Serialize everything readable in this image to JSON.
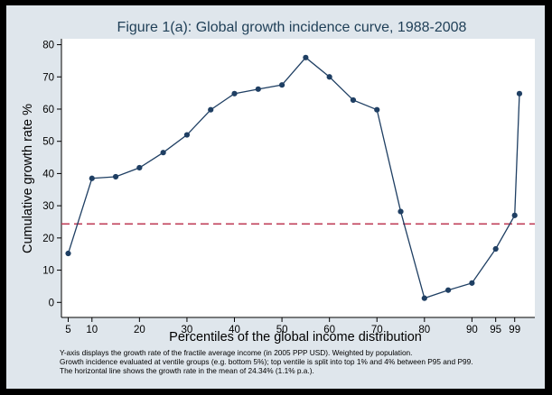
{
  "chart_data": {
    "type": "line",
    "title": "Figure 1(a): Global growth incidence curve, 1988-2008",
    "xlabel": "Percentiles of the global income distribution",
    "ylabel": "Cumulative growth rate %",
    "ylim": [
      0,
      80
    ],
    "yticks": [
      0,
      10,
      20,
      30,
      40,
      50,
      60,
      70,
      80
    ],
    "xticks": [
      5,
      10,
      20,
      30,
      40,
      50,
      60,
      70,
      80,
      90,
      95,
      99
    ],
    "x": [
      5,
      10,
      15,
      20,
      25,
      30,
      35,
      40,
      45,
      50,
      55,
      60,
      65,
      70,
      75,
      80,
      85,
      90,
      95,
      99,
      100
    ],
    "values": [
      15.2,
      38.5,
      39.0,
      41.8,
      46.5,
      52.0,
      59.8,
      64.8,
      66.2,
      67.5,
      76.0,
      70.0,
      62.8,
      59.8,
      28.2,
      1.3,
      3.8,
      6.0,
      16.6,
      27.0,
      64.8
    ],
    "reference_line": {
      "value": 24.34,
      "color": "#c0405a"
    },
    "line_color": "#1f3f63",
    "background": "#dfe6ec"
  },
  "notes": [
    "Y-axis displays the growth rate of the fractile average income (in 2005 PPP USD). Weighted by population.",
    "Growth incidence evaluated at ventile groups (e.g. bottom 5%); top ventile is split into top 1% and 4% between P95 and P99.",
    "The horizontal line shows the growth rate in the mean of 24.34% (1.1% p.a.)."
  ]
}
